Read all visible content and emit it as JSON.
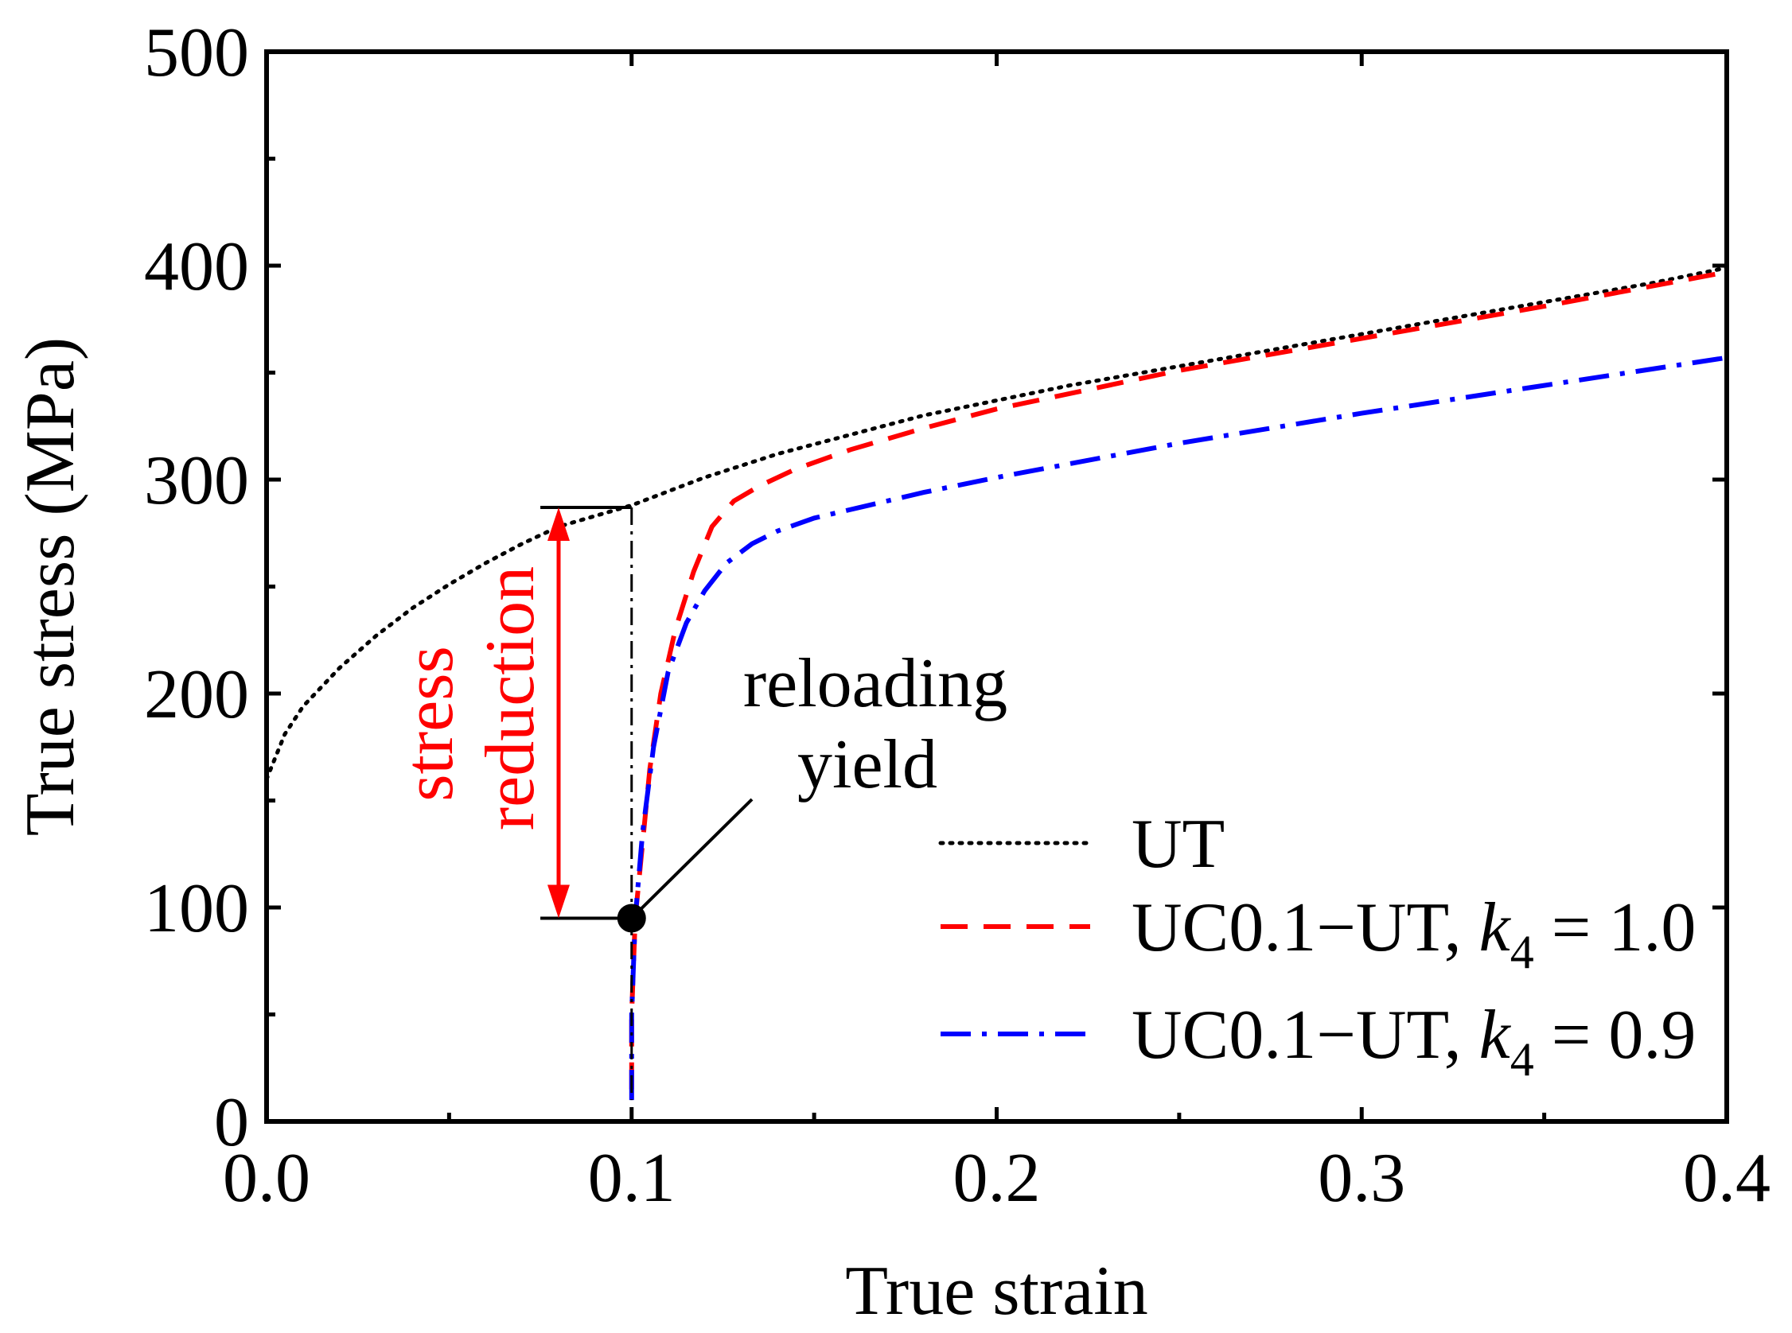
{
  "chart_data": {
    "type": "line",
    "xlabel": "True strain",
    "ylabel": "True stress (MPa)",
    "xlim": [
      0.0,
      0.4
    ],
    "ylim": [
      0,
      500
    ],
    "x_ticks": [
      "0.0",
      "0.1",
      "0.2",
      "0.3",
      "0.4"
    ],
    "y_ticks": [
      "0",
      "100",
      "200",
      "300",
      "400",
      "500"
    ],
    "x_tick_values": [
      0.0,
      0.1,
      0.2,
      0.3,
      0.4
    ],
    "y_tick_values": [
      0,
      100,
      200,
      300,
      400,
      500
    ],
    "legend_position": "bottom-right",
    "series": [
      {
        "name": "UT",
        "label": "UT",
        "subscript": "",
        "value": "",
        "color": "#000000",
        "style": "dotted",
        "x": [
          0.0,
          0.005,
          0.01,
          0.02,
          0.03,
          0.04,
          0.05,
          0.06,
          0.07,
          0.08,
          0.09,
          0.1,
          0.12,
          0.14,
          0.16,
          0.18,
          0.2,
          0.22,
          0.24,
          0.26,
          0.28,
          0.3,
          0.32,
          0.34,
          0.36,
          0.38,
          0.4
        ],
        "y": [
          160,
          181,
          194,
          212,
          227,
          240,
          251,
          261,
          270,
          278,
          283,
          288,
          301,
          312,
          321,
          330,
          337,
          344,
          350,
          356,
          362,
          368,
          374,
          380,
          386,
          392,
          399
        ]
      },
      {
        "name": "UC0.1−UT, k4 = 1.0",
        "label": "UC0.1−UT, ",
        "subscript": "4",
        "value": " = 1.0",
        "color": "#ff0000",
        "style": "dashed",
        "x": [
          0.1,
          0.1,
          0.101,
          0.103,
          0.105,
          0.108,
          0.112,
          0.117,
          0.122,
          0.128,
          0.135,
          0.145,
          0.16,
          0.18,
          0.2,
          0.25,
          0.3,
          0.35,
          0.4
        ],
        "y": [
          15,
          50,
          95,
          130,
          165,
          200,
          230,
          257,
          278,
          290,
          297,
          305,
          314,
          324,
          333,
          351,
          366,
          381,
          397
        ]
      },
      {
        "name": "UC0.1−UT, k4 = 0.9",
        "label": "UC0.1−UT, ",
        "subscript": "4",
        "value": " = 0.9",
        "color": "#0000ff",
        "style": "dashdot",
        "x": [
          0.1,
          0.1,
          0.101,
          0.103,
          0.106,
          0.11,
          0.115,
          0.12,
          0.126,
          0.133,
          0.14,
          0.15,
          0.165,
          0.18,
          0.2,
          0.25,
          0.3,
          0.35,
          0.4
        ],
        "y": [
          10,
          50,
          95,
          135,
          175,
          210,
          233,
          248,
          261,
          270,
          276,
          282,
          288,
          294,
          301,
          317,
          331,
          344,
          357
        ]
      }
    ],
    "annotations": {
      "reloading_line1": "reloading",
      "reloading_line2": "yield",
      "stress_reduction_line1": "stress",
      "stress_reduction_line2": "reduction",
      "reloading_point": {
        "x": 0.1,
        "y": 95
      },
      "upper_bracket_y": 287,
      "lower_bracket_y": 95,
      "bracket_x_start": 0.075,
      "bracket_x_end": 0.1,
      "arrow_x": 0.08,
      "vertical_guide_x": 0.1
    },
    "colors": {
      "annotation_red": "#ff0000",
      "axis": "#000000"
    }
  }
}
